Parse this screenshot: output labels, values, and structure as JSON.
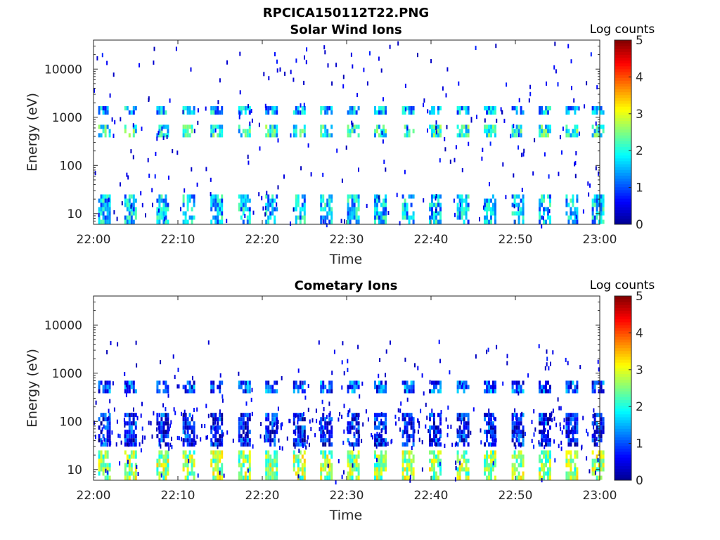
{
  "figure_title": "RPCICA150112T22.PNG",
  "colormap": [
    "#00008f",
    "#0000ff",
    "#0080ff",
    "#00ffff",
    "#80ff80",
    "#ffff00",
    "#ff8000",
    "#ff0000",
    "#800000"
  ],
  "chart_data": [
    {
      "type": "heatmap",
      "title": "Solar Wind Ions",
      "xlabel": "Time",
      "ylabel": "Energy (eV)",
      "yscale": "log",
      "ylim": [
        6,
        40000
      ],
      "xlim": [
        "22:00",
        "23:00"
      ],
      "xticks": [
        "22:00",
        "22:10",
        "22:20",
        "22:30",
        "22:40",
        "22:50",
        "23:00"
      ],
      "yticks": [
        10,
        100,
        1000,
        10000
      ],
      "yticklabels": [
        "10",
        "100",
        "1000",
        "10000"
      ],
      "colorbar": {
        "label": "Log counts",
        "range": [
          0,
          5
        ],
        "ticks": [
          "0",
          "1",
          "2",
          "3",
          "4",
          "5"
        ]
      },
      "scan_minutes": [
        1.3,
        4.4,
        8.2,
        11.3,
        14.6,
        17.9,
        21.1,
        24.4,
        27.6,
        30.8,
        34.0,
        37.3,
        40.5,
        43.8,
        47.0,
        50.3,
        53.5,
        56.7,
        59.8
      ],
      "bands": [
        {
          "energy_low": 7,
          "energy_high": 25,
          "log_counts": 1.6
        },
        {
          "energy_low": 420,
          "energy_high": 700,
          "log_counts": 2.0
        },
        {
          "energy_low": 1200,
          "energy_high": 1700,
          "log_counts": 1.5
        }
      ],
      "background": {
        "energy_range": [
          6,
          40000
        ],
        "log_counts": 0.2
      }
    },
    {
      "type": "heatmap",
      "title": "Cometary Ions",
      "xlabel": "Time",
      "ylabel": "Energy (eV)",
      "yscale": "log",
      "ylim": [
        6,
        40000
      ],
      "xlim": [
        "22:00",
        "23:00"
      ],
      "xticks": [
        "22:00",
        "22:10",
        "22:20",
        "22:30",
        "22:40",
        "22:50",
        "23:00"
      ],
      "yticks": [
        10,
        100,
        1000,
        10000
      ],
      "yticklabels": [
        "10",
        "100",
        "1000",
        "10000"
      ],
      "colorbar": {
        "label": "Log counts",
        "range": [
          0,
          5
        ],
        "ticks": [
          "0",
          "1",
          "2",
          "3",
          "4",
          "5"
        ]
      },
      "scan_minutes": [
        1.3,
        4.4,
        8.2,
        11.3,
        14.6,
        17.9,
        21.1,
        24.4,
        27.6,
        30.8,
        34.0,
        37.3,
        40.5,
        43.8,
        47.0,
        50.3,
        53.5,
        56.7,
        59.8
      ],
      "bands": [
        {
          "energy_low": 7,
          "energy_high": 25,
          "log_counts": 2.6
        },
        {
          "energy_low": 30,
          "energy_high": 150,
          "log_counts": 0.7
        },
        {
          "energy_low": 450,
          "energy_high": 700,
          "log_counts": 1.0
        }
      ],
      "background": {
        "energy_range": [
          6,
          5000
        ],
        "log_counts": 0.2
      }
    }
  ]
}
